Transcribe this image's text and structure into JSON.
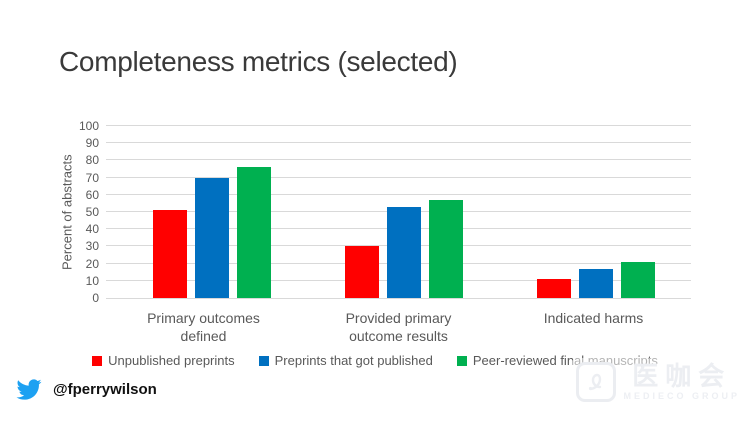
{
  "title": "Completeness metrics (selected)",
  "chart_data": {
    "type": "bar",
    "categories": [
      "Primary outcomes defined",
      "Provided primary outcome results",
      "Indicated harms"
    ],
    "series": [
      {
        "name": "Unpublished preprints",
        "color": "#ff0000",
        "values": [
          51,
          30,
          11
        ]
      },
      {
        "name": "Preprints that got published",
        "color": "#0070c0",
        "values": [
          70,
          53,
          17
        ]
      },
      {
        "name": "Peer-reviewed final manuscripts",
        "color": "#00b050",
        "values": [
          76,
          57,
          21
        ]
      }
    ],
    "xlabel": "",
    "ylabel": "Percent of abstracts",
    "ylim": [
      0,
      100
    ],
    "yticks": [
      0,
      10,
      20,
      30,
      40,
      50,
      60,
      70,
      80,
      90,
      100
    ],
    "grid": true,
    "legend_position": "bottom"
  },
  "footer": {
    "icon": "twitter-bird-icon",
    "handle": "@fperrywilson"
  },
  "watermark": {
    "cjk": "医咖会",
    "subtext": "MEDIECO GROUP"
  },
  "colors": {
    "title_text": "#3a3a3a",
    "axis_text": "#595959",
    "gridline": "#d9d9d9",
    "twitter_blue": "#1da1f2",
    "watermark": "#eceef2"
  }
}
